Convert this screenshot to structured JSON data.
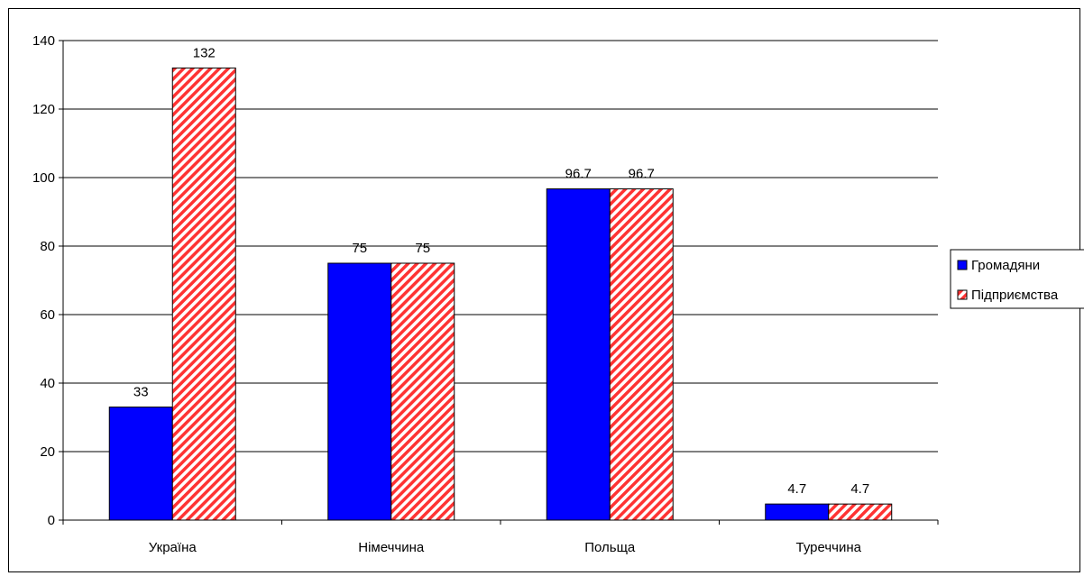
{
  "chart_data": {
    "type": "bar",
    "categories": [
      "Україна",
      "Німеччина",
      "Польща",
      "Туреччина"
    ],
    "series": [
      {
        "name": "Громадяни",
        "values": [
          33,
          75,
          96.7,
          4.7
        ],
        "color": "#0000ff",
        "pattern": "solid"
      },
      {
        "name": "Підприємства",
        "values": [
          132,
          75,
          96.7,
          4.7
        ],
        "color": "#ff3333",
        "pattern": "diagonal-hatch"
      }
    ],
    "data_labels": [
      [
        "33",
        "75",
        "96.7",
        "4.7"
      ],
      [
        "132",
        "75",
        "96.7",
        "4.7"
      ]
    ],
    "yticks": [
      "0",
      "20",
      "40",
      "60",
      "80",
      "100",
      "120",
      "140"
    ],
    "ylim": [
      0,
      140
    ],
    "grid": true,
    "legend_position": "right"
  }
}
